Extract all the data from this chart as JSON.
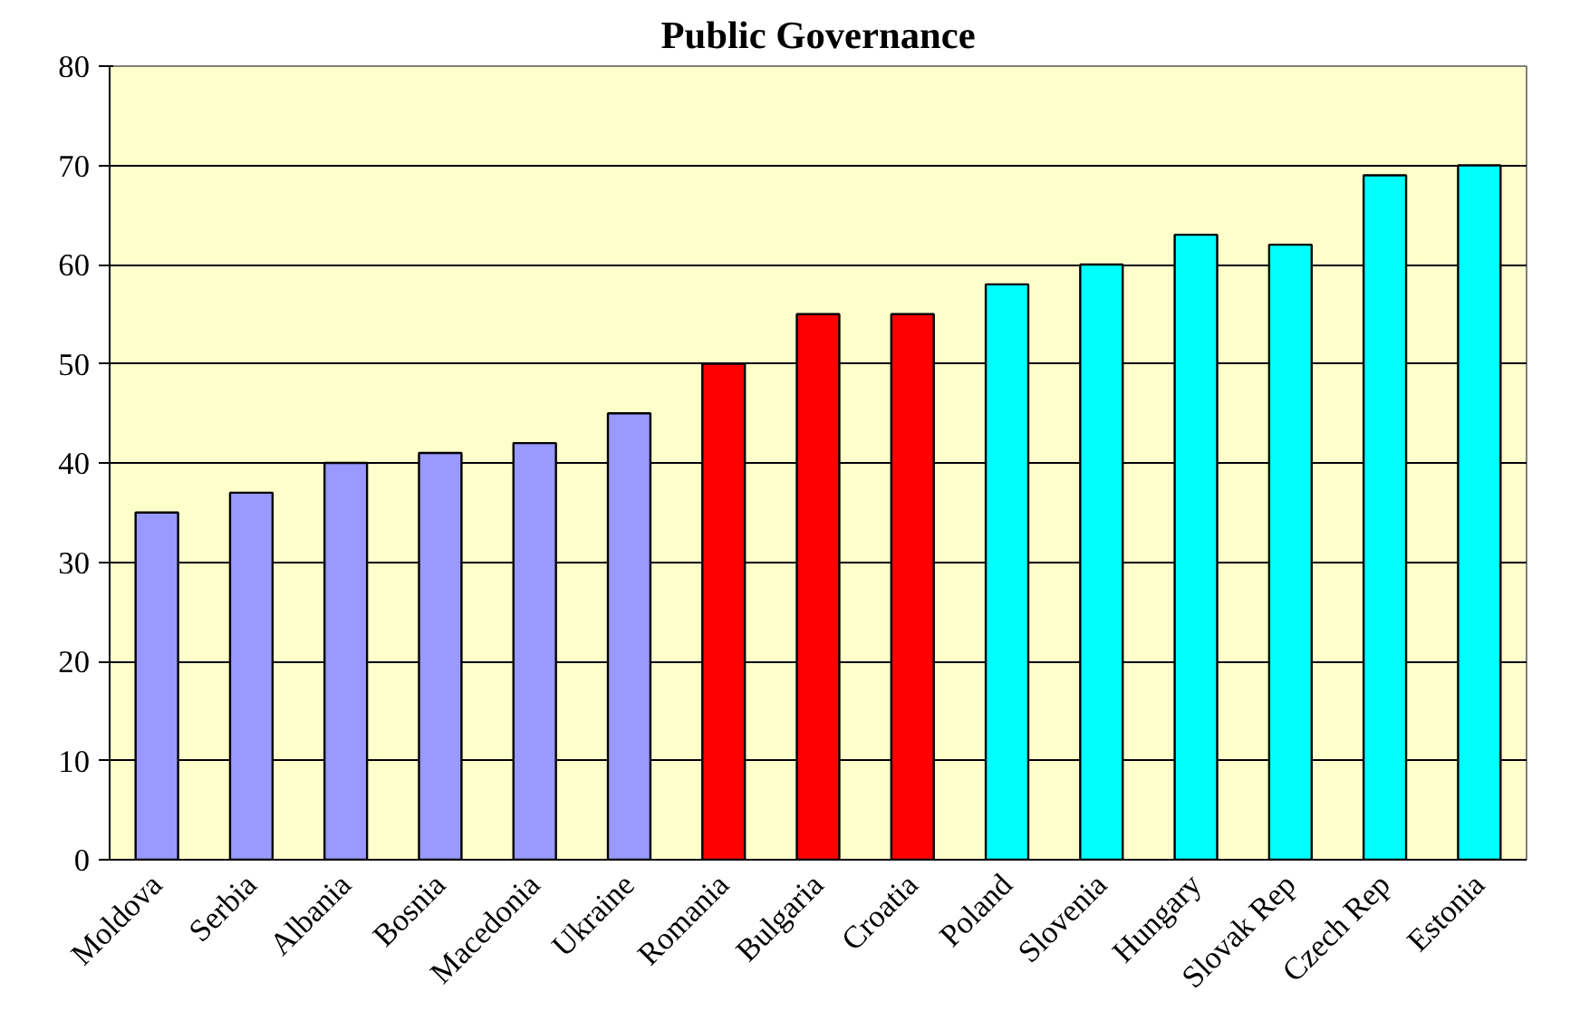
{
  "chart_data": {
    "type": "bar",
    "title": "Public Governance",
    "categories": [
      "Moldova",
      "Serbia",
      "Albania",
      "Bosnia",
      "Macedonia",
      "Ukraine",
      "Romania",
      "Bulgaria",
      "Croatia",
      "Poland",
      "Slovenia",
      "Hungary",
      "Slovak Rep",
      "Czech Rep",
      "Estonia"
    ],
    "values": [
      35,
      37,
      40,
      41,
      42,
      45,
      50,
      55,
      55,
      58,
      60,
      63,
      62,
      69,
      70
    ],
    "colors": [
      "#9999ff",
      "#9999ff",
      "#9999ff",
      "#9999ff",
      "#9999ff",
      "#9999ff",
      "#ff0000",
      "#ff0000",
      "#ff0000",
      "#00ffff",
      "#00ffff",
      "#00ffff",
      "#00ffff",
      "#00ffff",
      "#00ffff"
    ],
    "ylim": [
      0,
      80
    ],
    "yticks": [
      0,
      10,
      20,
      30,
      40,
      50,
      60,
      70,
      80
    ],
    "grid": "y"
  }
}
